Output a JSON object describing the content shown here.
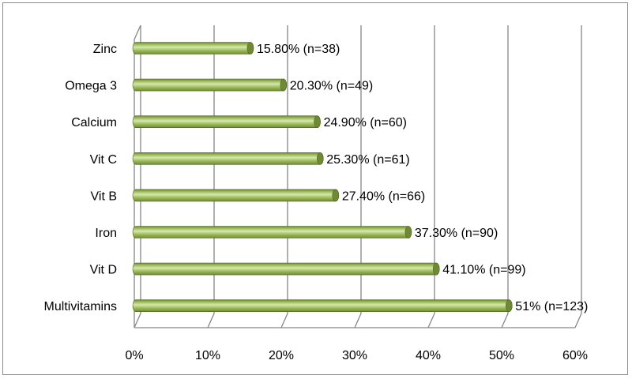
{
  "chart_data": {
    "type": "bar",
    "orientation": "horizontal",
    "style": "3d-cylinder",
    "categories": [
      "Zinc",
      "Omega 3",
      "Calcium",
      "Vit C",
      "Vit B",
      "Iron",
      "Vit D",
      "Multivitamins"
    ],
    "values": [
      15.8,
      20.3,
      24.9,
      25.3,
      27.4,
      37.3,
      41.1,
      51
    ],
    "data_labels": [
      "15.80% (n=38)",
      "20.30% (n=49)",
      "24.90% (n=60)",
      "25.30% (n=61)",
      "27.40% (n=66)",
      "37.30% (n=90)",
      "41.10% (n=99)",
      "51% (n=123)"
    ],
    "x_ticks": [
      "0%",
      "10%",
      "20%",
      "30%",
      "40%",
      "50%",
      "60%"
    ],
    "xlim": [
      0,
      60
    ],
    "title": "",
    "xlabel": "",
    "ylabel": "",
    "grid": true,
    "legend": "none",
    "colors": {
      "bar": "#9bbb59",
      "bar_light": "#d7e7ae",
      "bar_dark": "#6f8a33",
      "bar_outline": "#4f6228",
      "grid": "#868686",
      "axis": "#868686",
      "border": "#8c8c8c"
    }
  }
}
